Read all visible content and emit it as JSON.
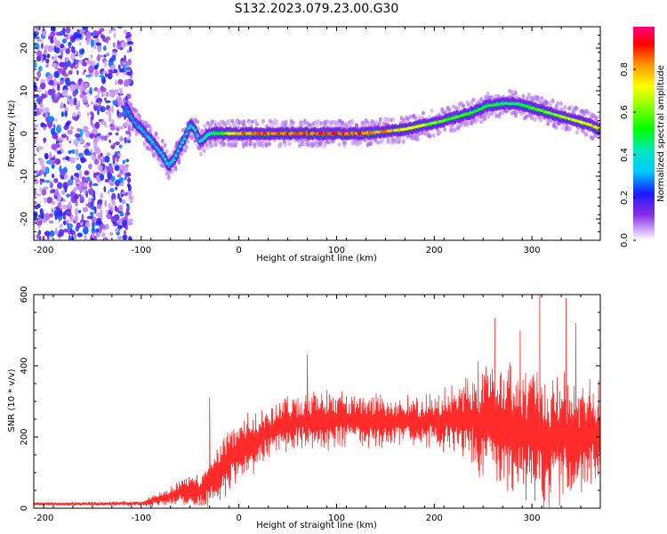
{
  "page": {
    "title": "S132.2023.079.23.00.G30"
  },
  "chart_data": [
    {
      "type": "heatmap",
      "title": "S132.2023.079.23.00.G30",
      "xlabel": "Height of straight line (km)",
      "ylabel": "Frequency (Hz)",
      "xlim": [
        -210,
        370
      ],
      "ylim": [
        -25,
        25
      ],
      "xticks": [
        -200,
        -100,
        0,
        100,
        200,
        300
      ],
      "yticks": [
        -20,
        -10,
        0,
        10,
        20
      ],
      "colorbar": {
        "label": "Normalized spectral amplitude",
        "range": [
          0.0,
          1.0
        ],
        "ticks": [
          0.0,
          0.2,
          0.4,
          0.6,
          0.8
        ],
        "colormap": "rainbow"
      },
      "ridge": {
        "x": [
          -115,
          -108,
          -100,
          -92,
          -85,
          -78,
          -72,
          -66,
          -60,
          -55,
          -50,
          -45,
          -40,
          -35,
          -30,
          -20,
          0,
          25,
          50,
          75,
          100,
          125,
          150,
          170,
          190,
          210,
          225,
          240,
          255,
          270,
          285,
          300,
          315,
          330,
          345,
          360,
          370
        ],
        "y": [
          6,
          3,
          1,
          -1,
          -3,
          -5,
          -7.5,
          -6,
          -3,
          -1,
          2,
          1,
          -2,
          -1,
          0,
          0,
          0,
          0,
          0,
          0,
          0,
          0,
          0.5,
          1,
          2,
          3,
          4,
          5,
          6.5,
          7,
          7,
          6,
          5,
          4,
          3,
          2,
          1
        ]
      },
      "ridge_amplitude": {
        "x": [
          -115,
          -80,
          -40,
          -20,
          0,
          100,
          150,
          170,
          200,
          240,
          280,
          320,
          370
        ],
        "a": [
          0.3,
          0.35,
          0.4,
          0.55,
          0.9,
          0.95,
          0.9,
          0.8,
          0.65,
          0.55,
          0.5,
          0.65,
          0.85
        ]
      },
      "noise_region": {
        "x": [
          -210,
          -110
        ],
        "y": [
          -25,
          25
        ],
        "amplitude": "low (0.1-0.3)"
      }
    },
    {
      "type": "line",
      "xlabel": "Height of straight line (km)",
      "ylabel": "SNR (10 * v/v)",
      "xlim": [
        -210,
        370
      ],
      "ylim": [
        0,
        600
      ],
      "xticks": [
        -200,
        -100,
        0,
        100,
        200,
        300
      ],
      "yticks": [
        0,
        200,
        400,
        600
      ],
      "color": "#ff2a2a",
      "envelope": {
        "x": [
          -210,
          -150,
          -100,
          -80,
          -60,
          -40,
          -25,
          -10,
          0,
          20,
          40,
          60,
          80,
          100,
          120,
          150,
          180,
          200,
          230,
          250,
          270,
          290,
          310,
          330,
          350,
          370
        ],
        "mean": [
          12,
          12,
          14,
          25,
          45,
          50,
          85,
          140,
          160,
          200,
          225,
          240,
          245,
          248,
          248,
          245,
          240,
          245,
          250,
          245,
          230,
          220,
          200,
          200,
          200,
          210
        ],
        "amp": [
          6,
          6,
          8,
          25,
          45,
          60,
          90,
          110,
          110,
          100,
          95,
          95,
          95,
          90,
          90,
          85,
          80,
          85,
          120,
          200,
          220,
          230,
          220,
          210,
          200,
          190
        ]
      },
      "peaks": [
        {
          "x": -30,
          "y": 310
        },
        {
          "x": 70,
          "y": 430
        },
        {
          "x": 262,
          "y": 535
        },
        {
          "x": 288,
          "y": 500
        },
        {
          "x": 308,
          "y": 600
        },
        {
          "x": 335,
          "y": 590
        },
        {
          "x": 345,
          "y": 520
        }
      ]
    }
  ]
}
